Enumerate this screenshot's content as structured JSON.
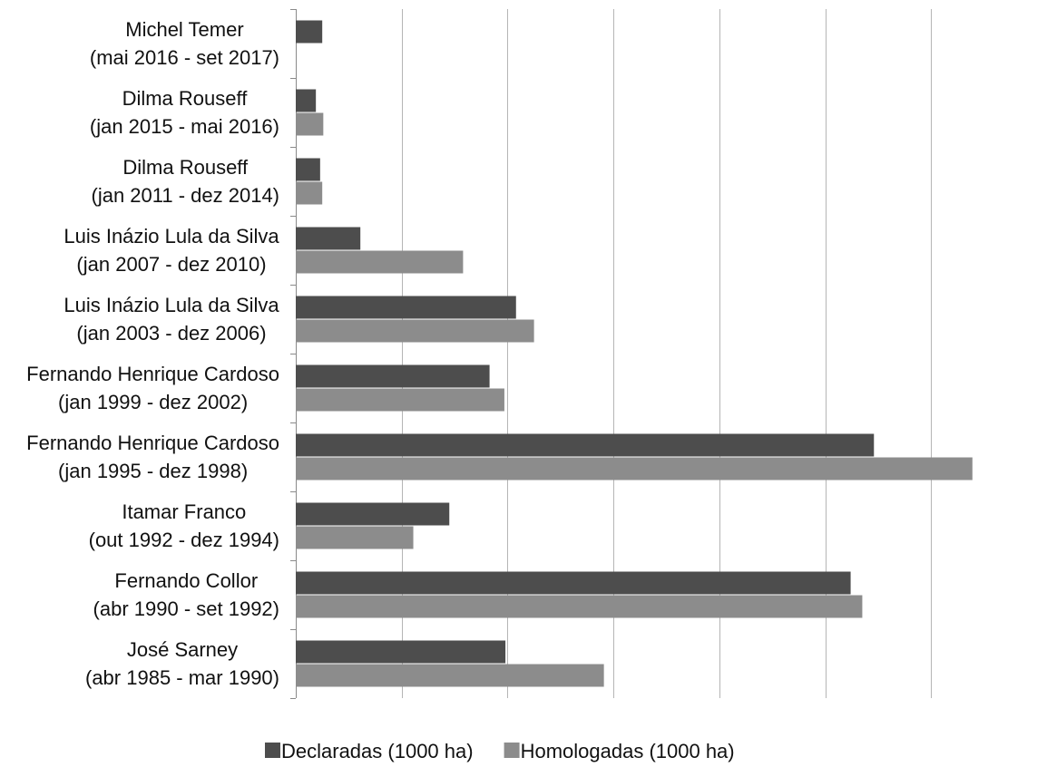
{
  "chart_data": {
    "type": "bar",
    "orientation": "horizontal",
    "title": "",
    "xlabel": "",
    "ylabel": "",
    "grid": true,
    "legend_position": "bottom-center",
    "xlim": [
      0,
      7000
    ],
    "categories": [
      [
        "Michel Temer",
        "(mai 2016 - set 2017)"
      ],
      [
        "Dilma Rouseff",
        "(jan 2015 - mai 2016)"
      ],
      [
        "Dilma Rouseff",
        "(jan 2011 - dez 2014)"
      ],
      [
        "Luis Inázio Lula da Silva",
        "(jan 2007 - dez 2010)"
      ],
      [
        "Luis Inázio Lula da Silva",
        "(jan 2003 - dez 2006)"
      ],
      [
        "Fernando Henrique Cardoso",
        "(jan 1999 - dez 2002)"
      ],
      [
        "Fernando Henrique Cardoso",
        "(jan 1995 - dez 1998)"
      ],
      [
        "Itamar Franco",
        "(out 1992 - dez 1994)"
      ],
      [
        "Fernando Collor",
        "(abr 1990 - set 1992)"
      ],
      [
        "José Sarney",
        "(abr 1985 - mar 1990)"
      ]
    ],
    "series": [
      {
        "name": "Declaradas (1000 ha)",
        "color": "#4d4d4d",
        "values": [
          250,
          190,
          230,
          610,
          2080,
          1830,
          5460,
          1450,
          5240,
          1980
        ]
      },
      {
        "name": "Homologadas (1000 ha)",
        "color": "#8c8c8c",
        "values": null
      }
    ],
    "homologadas_values": [
      null,
      260,
      250,
      1580,
      2250,
      1970,
      6390,
      1110,
      5350,
      2910
    ]
  }
}
